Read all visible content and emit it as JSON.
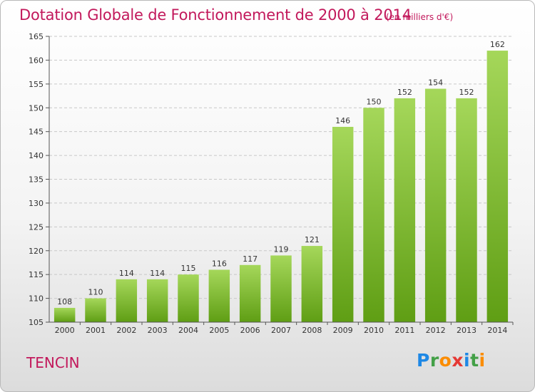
{
  "header": {
    "title": "Dotation Globale de Fonctionnement de 2000 à 2014",
    "subtitle": "(en milliers d'€)"
  },
  "footer": {
    "commune": "TENCIN",
    "logo": "Proxiti",
    "logo_letters": [
      {
        "char": "P",
        "color": "#1e88e5"
      },
      {
        "char": "r",
        "color": "#43a047"
      },
      {
        "char": "o",
        "color": "#fb8c00"
      },
      {
        "char": "x",
        "color": "#e53935"
      },
      {
        "char": "i",
        "color": "#1e88e5"
      },
      {
        "char": "t",
        "color": "#43a047"
      },
      {
        "char": "i",
        "color": "#fb8c00"
      }
    ]
  },
  "colors": {
    "title": "#c2185b",
    "bar_top": "#a5d75a",
    "bar_bottom": "#5f9e14",
    "grid": "#c8c8c8"
  },
  "chart_data": {
    "type": "bar",
    "title": "Dotation Globale de Fonctionnement de 2000 à 2014",
    "subtitle": "(en milliers d'€)",
    "xlabel": "",
    "ylabel": "",
    "categories": [
      "2000",
      "2001",
      "2002",
      "2003",
      "2004",
      "2005",
      "2006",
      "2007",
      "2008",
      "2009",
      "2010",
      "2011",
      "2012",
      "2013",
      "2014"
    ],
    "values": [
      108,
      110,
      114,
      114,
      115,
      116,
      117,
      119,
      121,
      146,
      150,
      152,
      154,
      152,
      162
    ],
    "ylim": [
      105,
      165
    ],
    "yticks": [
      105,
      110,
      115,
      120,
      125,
      130,
      135,
      140,
      145,
      150,
      155,
      160,
      165
    ],
    "grid": "horizontal dashed",
    "legend": "none"
  }
}
